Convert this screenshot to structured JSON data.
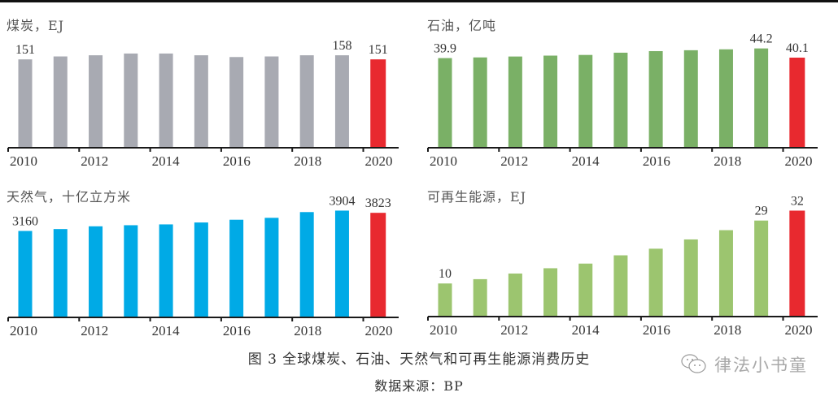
{
  "caption": {
    "figure": "图 3 全球煤炭、石油、天然气和可再生能源消费历史",
    "source": "数据来源：BP"
  },
  "watermark": {
    "text": "律法小书童",
    "icon": "wechat-icon"
  },
  "colors": {
    "highlight": "#e8292f",
    "coal": "#a8aab2",
    "oil": "#7ab066",
    "gas": "#00aae6",
    "renewables": "#9cc56f",
    "axis": "#1a1a1a"
  },
  "chart_data": [
    {
      "id": "coal",
      "type": "bar",
      "title": "煤炭，EJ",
      "xlabel": "",
      "ylabel": "EJ",
      "categories": [
        "2010",
        "2011",
        "2012",
        "2013",
        "2014",
        "2015",
        "2016",
        "2017",
        "2018",
        "2019",
        "2020"
      ],
      "values": [
        151,
        156,
        158,
        161,
        161,
        158,
        155,
        156,
        158,
        158,
        151
      ],
      "labels": {
        "0": "151",
        "9": "158",
        "10": "151"
      },
      "tick_labels": [
        "2010",
        "2012",
        "2014",
        "2016",
        "2018",
        "2020"
      ],
      "ylim": [
        0,
        215
      ],
      "color": "#a8aab2",
      "highlight_index": 10,
      "grid": false
    },
    {
      "id": "oil",
      "type": "bar",
      "title": "石油，亿吨",
      "xlabel": "",
      "ylabel": "亿吨",
      "categories": [
        "2010",
        "2011",
        "2012",
        "2013",
        "2014",
        "2015",
        "2016",
        "2017",
        "2018",
        "2019",
        "2020"
      ],
      "values": [
        39.9,
        40.2,
        40.6,
        41.0,
        41.3,
        42.3,
        43.0,
        43.4,
        43.8,
        44.2,
        40.1
      ],
      "labels": {
        "0": "39.9",
        "9": "44.2",
        "10": "40.1"
      },
      "tick_labels": [
        "2010",
        "2012",
        "2014",
        "2016",
        "2018",
        "2020"
      ],
      "ylim": [
        0,
        56
      ],
      "color": "#7ab066",
      "highlight_index": 10,
      "grid": false
    },
    {
      "id": "gas",
      "type": "bar",
      "title": "天然气，十亿立方米",
      "xlabel": "",
      "ylabel": "十亿立方米",
      "categories": [
        "2010",
        "2011",
        "2012",
        "2013",
        "2014",
        "2015",
        "2016",
        "2017",
        "2018",
        "2019",
        "2020"
      ],
      "values": [
        3160,
        3230,
        3330,
        3370,
        3400,
        3470,
        3570,
        3640,
        3850,
        3904,
        3823
      ],
      "labels": {
        "0": "3160",
        "9": "3904",
        "10": "3823"
      },
      "tick_labels": [
        "2010",
        "2012",
        "2014",
        "2016",
        "2018",
        "2020"
      ],
      "ylim": [
        0,
        4600
      ],
      "color": "#00aae6",
      "highlight_index": 10,
      "grid": false
    },
    {
      "id": "renewables",
      "type": "bar",
      "title": "可再生能源，EJ",
      "xlabel": "",
      "ylabel": "EJ",
      "categories": [
        "2010",
        "2011",
        "2012",
        "2013",
        "2014",
        "2015",
        "2016",
        "2017",
        "2018",
        "2019",
        "2020"
      ],
      "values": [
        10,
        11.3,
        13.0,
        14.6,
        16.0,
        18.5,
        20.5,
        23.3,
        26.1,
        29,
        32
      ],
      "labels": {
        "0": "10",
        "9": "29",
        "10": "32"
      },
      "tick_labels": [
        "2010",
        "2012",
        "2014",
        "2016",
        "2018",
        "2020"
      ],
      "ylim": [
        0,
        38
      ],
      "color": "#9cc56f",
      "highlight_index": 10,
      "grid": false
    }
  ]
}
